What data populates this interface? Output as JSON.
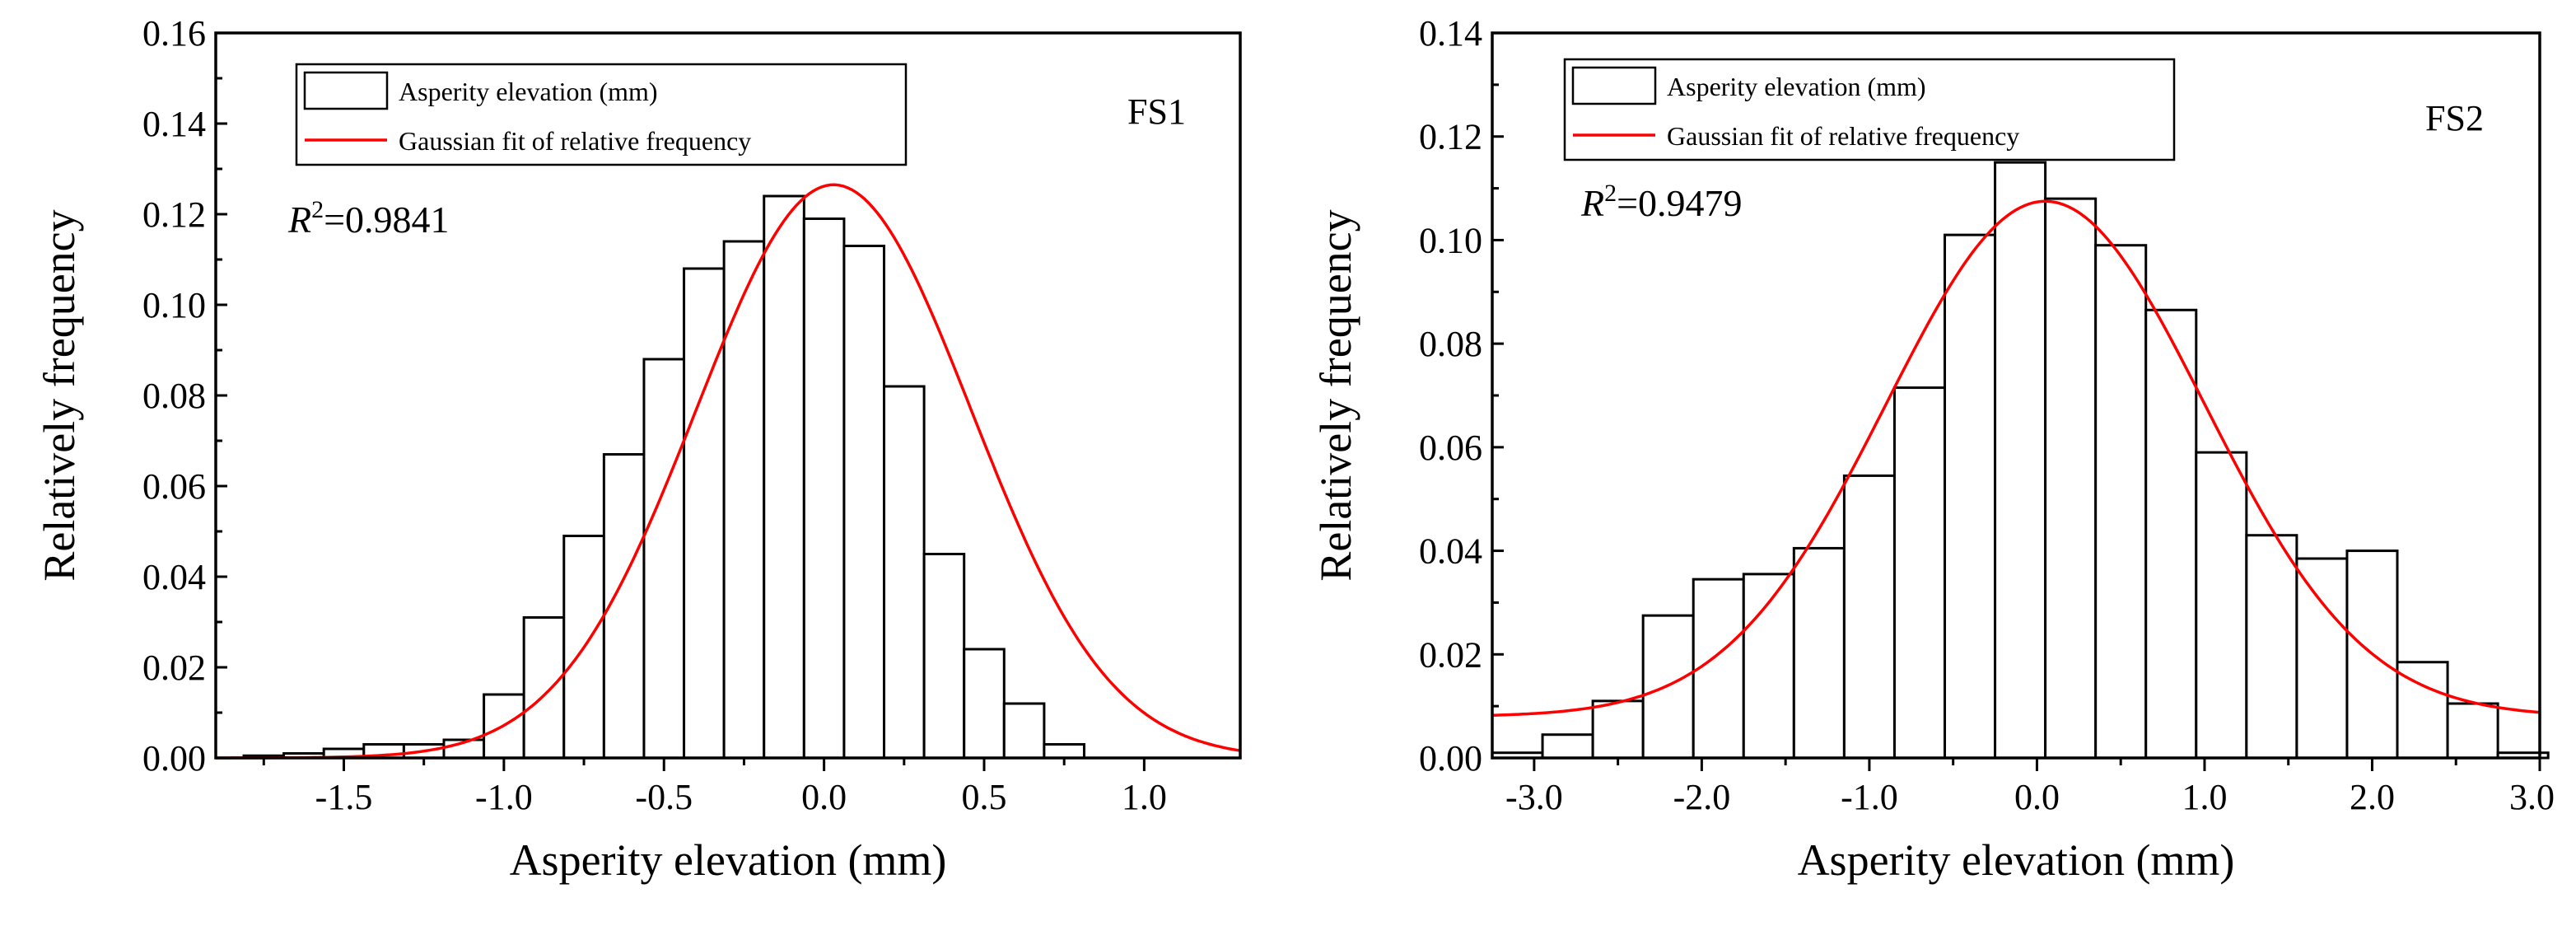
{
  "chart_data": [
    {
      "type": "bar",
      "panel_label": "FS1",
      "xlabel": "Asperity elevation (mm)",
      "ylabel": "Relatively frequency",
      "xlim": [
        -1.9,
        1.3
      ],
      "ylim": [
        0,
        0.16
      ],
      "xticks": [
        -1.5,
        -1.0,
        -0.5,
        0.0,
        0.5,
        1.0
      ],
      "xtick_labels": [
        "-1.5",
        "-1.0",
        "-0.5",
        "0.0",
        "0.5",
        "1.0"
      ],
      "yticks": [
        0,
        0.02,
        0.04,
        0.06,
        0.08,
        0.1,
        0.12,
        0.14,
        0.16
      ],
      "ytick_labels": [
        "0.00",
        "0.02",
        "0.04",
        "0.06",
        "0.08",
        "0.10",
        "0.12",
        "0.14",
        "0.16"
      ],
      "bin_width": 0.125,
      "bin_centers": [
        -1.75,
        -1.625,
        -1.5,
        -1.375,
        -1.25,
        -1.125,
        -1.0,
        -0.875,
        -0.75,
        -0.625,
        -0.5,
        -0.375,
        -0.25,
        -0.125,
        0.0,
        0.125,
        0.25,
        0.375,
        0.5,
        0.625,
        0.75,
        0.875,
        1.0,
        1.125
      ],
      "values": [
        0.0005,
        0.001,
        0.002,
        0.003,
        0.003,
        0.004,
        0.014,
        0.031,
        0.049,
        0.067,
        0.088,
        0.108,
        0.114,
        0.124,
        0.119,
        0.113,
        0.082,
        0.045,
        0.024,
        0.012,
        0.003,
        0.0,
        0.0,
        0.0
      ],
      "fit": {
        "amplitude": 0.1265,
        "mean": 0.03,
        "sigma": 0.43
      },
      "legend": {
        "position": "top-left",
        "entries": [
          "Asperity elevation (mm)",
          "Gaussian fit of relative frequency"
        ]
      },
      "r2": {
        "symbol": "R",
        "superscript": "2",
        "value_text": "=0.9841"
      },
      "colors": {
        "fit": "#ff0000",
        "bars": "#ffffff",
        "edge": "#000000"
      }
    },
    {
      "type": "bar",
      "panel_label": "FS2",
      "xlabel": "Asperity elevation (mm)",
      "ylabel": "Relatively frequency",
      "xlim": [
        -3.25,
        3.0
      ],
      "ylim": [
        0,
        0.14
      ],
      "xticks": [
        -3.0,
        -2.0,
        -1.0,
        0.0,
        1.0,
        2.0,
        3.0
      ],
      "xtick_labels": [
        "-3.0",
        "-2.0",
        "-1.0",
        "0.0",
        "1.0",
        "2.0",
        "3.0"
      ],
      "yticks": [
        0,
        0.02,
        0.04,
        0.06,
        0.08,
        0.1,
        0.12,
        0.14
      ],
      "ytick_labels": [
        "0.00",
        "0.02",
        "0.04",
        "0.06",
        "0.08",
        "0.10",
        "0.12",
        "0.14"
      ],
      "bin_width": 0.3,
      "bin_centers": [
        -3.1,
        -2.8,
        -2.5,
        -2.2,
        -1.9,
        -1.6,
        -1.3,
        -1.0,
        -0.7,
        -0.4,
        -0.1,
        0.2,
        0.5,
        0.8,
        1.1,
        1.4,
        1.7,
        2.0,
        2.3,
        2.6,
        2.9
      ],
      "values": [
        0.001,
        0.0045,
        0.011,
        0.0275,
        0.0345,
        0.0355,
        0.0405,
        0.0545,
        0.0715,
        0.101,
        0.115,
        0.108,
        0.099,
        0.0865,
        0.059,
        0.043,
        0.0385,
        0.04,
        0.0185,
        0.0105,
        0.001
      ],
      "fit": {
        "amplitude": 0.0995,
        "mean": 0.05,
        "sigma": 0.95,
        "baseline": 0.008
      },
      "legend": {
        "position": "top-left",
        "entries": [
          "Asperity elevation (mm)",
          "Gaussian fit of relative frequency"
        ]
      },
      "r2": {
        "symbol": "R",
        "superscript": "2",
        "value_text": "=0.9479"
      },
      "colors": {
        "fit": "#ff0000",
        "bars": "#ffffff",
        "edge": "#000000"
      }
    }
  ]
}
